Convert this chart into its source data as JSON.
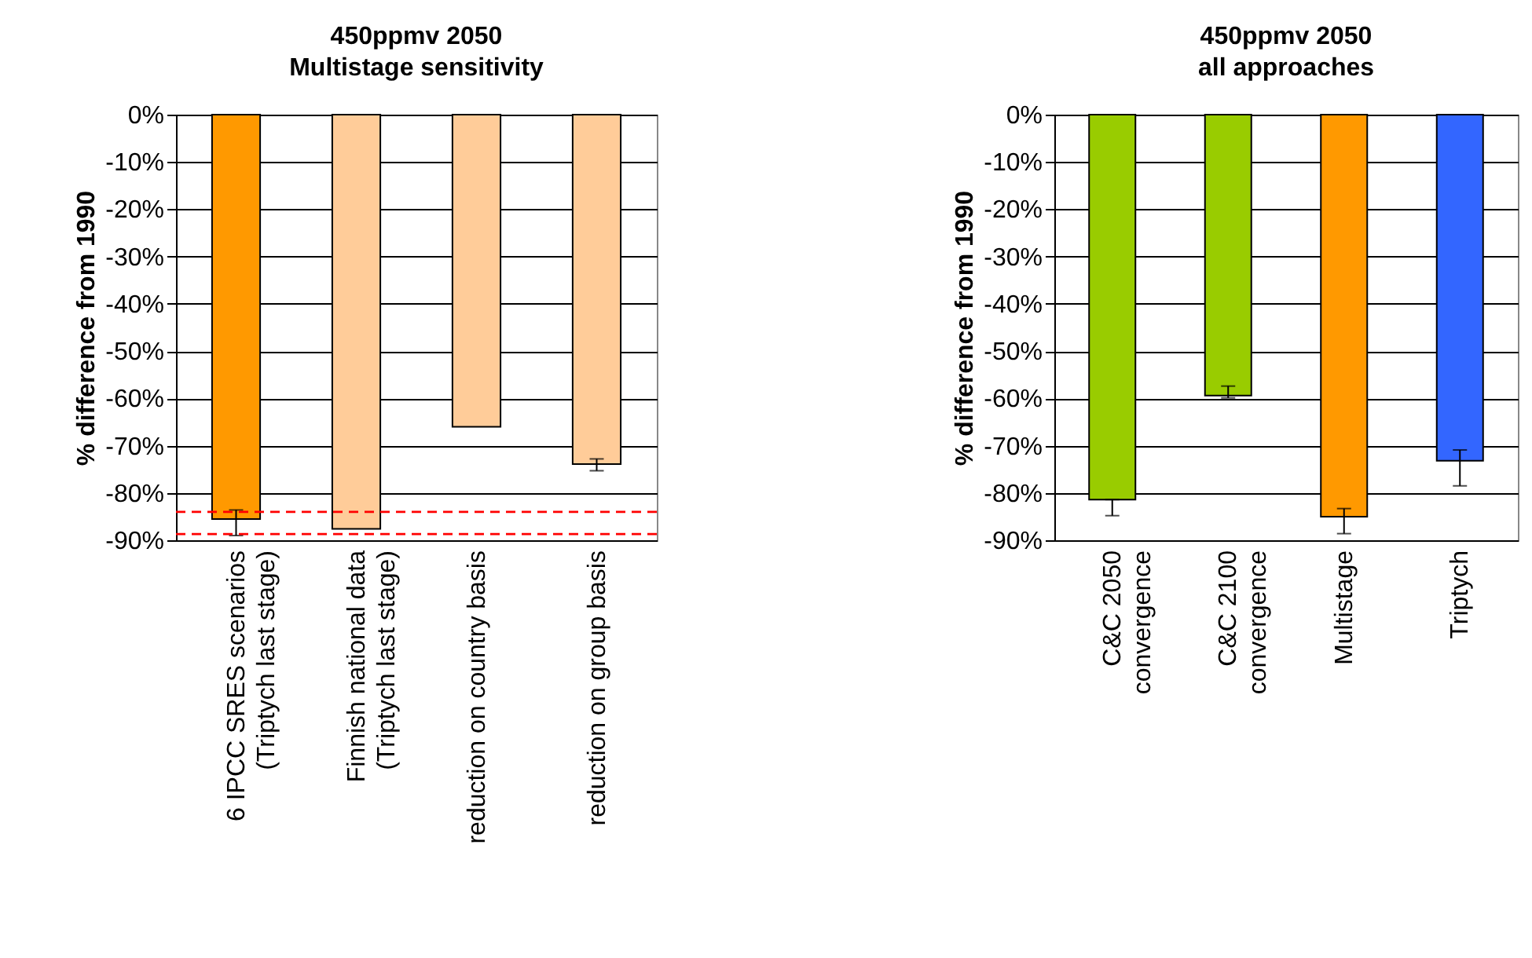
{
  "chart_data": [
    {
      "type": "bar",
      "title": "450ppmv 2050\nMultistage sensitivity",
      "ylabel": "% difference from 1990",
      "categories": [
        "6 IPCC SRES scenarios\n(Triptych last stage)",
        "Finnish national data\n(Triptych last stage)",
        "reduction on country basis",
        "reduction on group basis"
      ],
      "values": [
        -85.5,
        -87.6,
        -66.0,
        -73.9
      ],
      "colors": [
        "#ff9900",
        "#ffcc99",
        "#ffcc99",
        "#ffcc99"
      ],
      "errors": [
        [
          -89.0,
          -83.6
        ],
        null,
        null,
        [
          -75.3,
          -72.8
        ]
      ],
      "ylim": [
        -90,
        0
      ],
      "yticks": [
        {
          "value": -90,
          "label": "-90%"
        },
        {
          "value": -80,
          "label": "-80%"
        },
        {
          "value": -70,
          "label": "-70%"
        },
        {
          "value": -60,
          "label": "-60%"
        },
        {
          "value": -50,
          "label": "-50%"
        },
        {
          "value": -40,
          "label": "-40%"
        },
        {
          "value": -30,
          "label": "-30%"
        },
        {
          "value": -20,
          "label": "-20%"
        },
        {
          "value": -10,
          "label": "-10%"
        },
        {
          "value": 0,
          "label": "0%"
        }
      ],
      "ref_lines": [
        {
          "axis": "y",
          "value": -84.0,
          "color": "#ff0000",
          "line_style": "dashed"
        },
        {
          "axis": "y",
          "value": -88.7,
          "color": "#ff0000",
          "line_style": "dashed"
        }
      ],
      "grid": "y"
    },
    {
      "type": "bar",
      "title": "450ppmv 2050\nall approaches",
      "ylabel": "% difference from 1990",
      "categories": [
        "C&C 2050\nconvergence",
        "C&C 2100\nconvergence",
        "Multistage",
        "Triptych"
      ],
      "values": [
        -81.4,
        -59.4,
        -85.0,
        -73.2
      ],
      "colors": [
        "#99cc00",
        "#99cc00",
        "#ff9900",
        "#3366ff"
      ],
      "errors": [
        [
          -84.8,
          -81.4
        ],
        [
          -59.9,
          -57.4
        ],
        [
          -88.6,
          -83.3
        ],
        [
          -78.5,
          -70.9
        ]
      ],
      "ylim": [
        -90,
        0
      ],
      "yticks": [
        {
          "value": -90,
          "label": "-90%"
        },
        {
          "value": -80,
          "label": "-80%"
        },
        {
          "value": -70,
          "label": "-70%"
        },
        {
          "value": -60,
          "label": "-60%"
        },
        {
          "value": -50,
          "label": "-50%"
        },
        {
          "value": -40,
          "label": "-40%"
        },
        {
          "value": -30,
          "label": "-30%"
        },
        {
          "value": -20,
          "label": "-20%"
        },
        {
          "value": -10,
          "label": "-10%"
        },
        {
          "value": 0,
          "label": "0%"
        }
      ],
      "grid": "y"
    }
  ]
}
